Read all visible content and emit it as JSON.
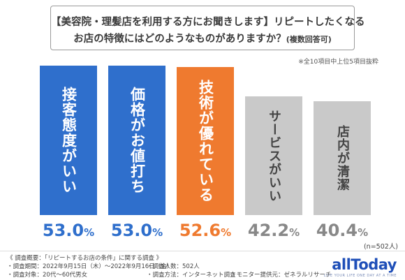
{
  "header": {
    "title_line1": "【美容院・理髪店を利用する方にお聞きします】リピートしたくなる",
    "title_line2": "お店の特徴にはどのようなものがありますか？",
    "title_line2_suffix": "(複数回答可)"
  },
  "note": "※全10項目中上位5項目抜粋",
  "sample_note": "(n=502人)",
  "footer": {
    "survey_summary": "《 調査概要：「リピートするお店の条件」に関する調査 》",
    "period": "・調査期間：2022年9月15日（木）〜2022年9月16日（金）",
    "respondents": "・調査人数：502人",
    "target": "・調査対象：20代〜60代男女",
    "method": "・調査方法：インターネット調査",
    "provider": "・モニター提供元：ゼネラルリサーチ",
    "logo": "allToday",
    "logo_tagline": "LIVE YOUR LIFE ONE DAY AT A TIME"
  },
  "colors": {
    "blue": "#2f6fcc",
    "orange": "#ef7a2f",
    "gray": "#c9c9c9",
    "pct_blue": "#2f6fcc",
    "pct_orange": "#ef7a2f",
    "pct_gray": "#888888"
  },
  "chart_data": {
    "type": "bar",
    "unit": "%",
    "ylim": [
      0,
      60
    ],
    "categories": [
      "接客態度がいい",
      "価格がお値打ち",
      "技術が優れている",
      "サービスがいい",
      "店内が清潔"
    ],
    "values": [
      53.0,
      53.0,
      52.6,
      42.2,
      40.4
    ],
    "value_labels": [
      {
        "num": "53.0",
        "unit": "%"
      },
      {
        "num": "53.0",
        "unit": "%"
      },
      {
        "num": "52.6",
        "unit": "%"
      },
      {
        "num": "42.2",
        "unit": "%"
      },
      {
        "num": "40.4",
        "unit": "%"
      }
    ],
    "bar_colors": [
      "blue",
      "blue",
      "orange",
      "gray",
      "gray"
    ]
  }
}
